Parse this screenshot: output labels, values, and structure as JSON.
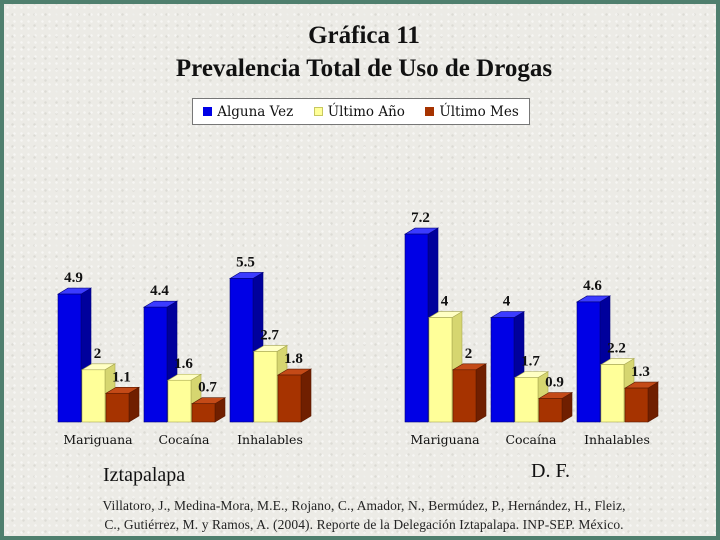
{
  "header": {
    "title": "Gráfica 11",
    "subtitle": "Prevalencia Total de Uso de Drogas"
  },
  "legend": [
    {
      "name": "Alguna Vez",
      "color": "#0000e6"
    },
    {
      "name": "Último Año",
      "color": "#ffff99"
    },
    {
      "name": "Último Mes",
      "color": "#a63300"
    }
  ],
  "chart_data": [
    {
      "type": "bar",
      "title": "Iztapalapa",
      "categories": [
        "Mariguana",
        "Cocaína",
        "Inhalables"
      ],
      "series": [
        {
          "name": "Alguna Vez",
          "values": [
            4.9,
            4.4,
            5.5
          ]
        },
        {
          "name": "Último Año",
          "values": [
            2,
            1.6,
            2.7
          ]
        },
        {
          "name": "Último Mes",
          "values": [
            1.1,
            0.7,
            1.8
          ]
        }
      ]
    },
    {
      "type": "bar",
      "title": "D. F.",
      "categories": [
        "Mariguana",
        "Cocaína",
        "Inhalables"
      ],
      "series": [
        {
          "name": "Alguna Vez",
          "values": [
            7.2,
            4,
            4.6
          ]
        },
        {
          "name": "Último Año",
          "values": [
            4,
            1.7,
            2.2
          ]
        },
        {
          "name": "Último Mes",
          "values": [
            2,
            0.9,
            1.3
          ]
        }
      ]
    }
  ],
  "citation": {
    "line1": "Villatoro, J., Medina-Mora, M.E., Rojano, C., Amador, N., Bermúdez, P., Hernández, H., Fleiz,",
    "line2": "C., Gutiérrez, M. y Ramos, A. (2004). Reporte de la Delegación Iztapalapa. INP-SEP. México."
  }
}
